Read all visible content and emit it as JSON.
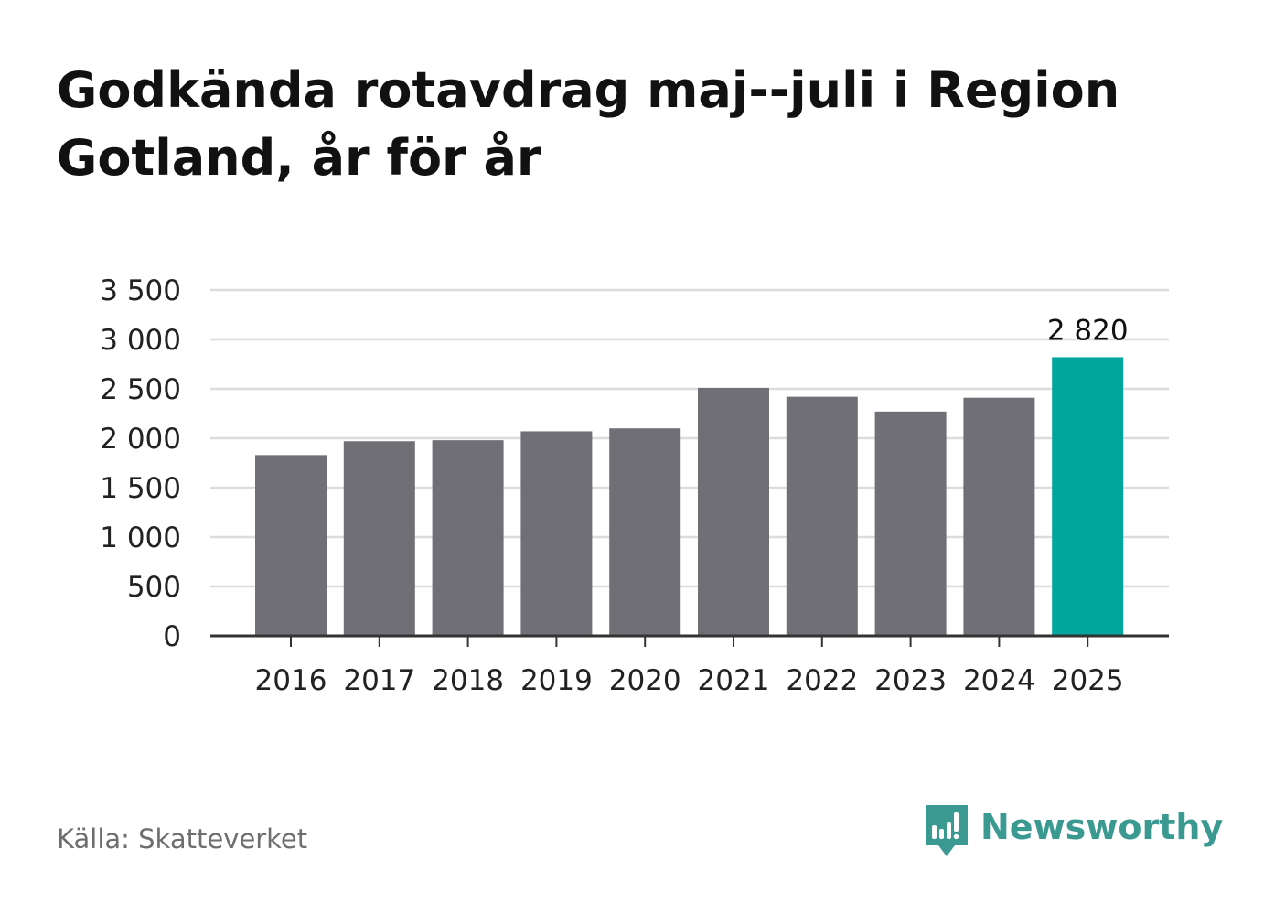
{
  "title": "Godkända rotavdrag maj--juli i Region Gotland, år för år",
  "source": "Källa: Skatteverket",
  "brand": {
    "name": "Newsworthy",
    "color": "#3a9a92",
    "icon": "newsworthy-logo-icon"
  },
  "colors": {
    "bar": "#706f75",
    "highlight": "#00a59b",
    "grid": "#dcdcdc",
    "axis": "#333333",
    "text": "#222222"
  },
  "chart_data": {
    "type": "bar",
    "title": "Godkända rotavdrag maj--juli i Region Gotland, år för år",
    "xlabel": "",
    "ylabel": "",
    "categories": [
      "2016",
      "2017",
      "2018",
      "2019",
      "2020",
      "2021",
      "2022",
      "2023",
      "2024",
      "2025"
    ],
    "values": [
      1830,
      1970,
      1980,
      2070,
      2100,
      2510,
      2420,
      2270,
      2410,
      2820
    ],
    "highlight_index": 9,
    "data_labels": [
      {
        "index": 9,
        "text": "2 820"
      }
    ],
    "ylim": [
      0,
      3500
    ],
    "yticks": [
      0,
      500,
      1000,
      1500,
      2000,
      2500,
      3000,
      3500
    ],
    "ytick_labels": [
      "0",
      "500",
      "1 000",
      "1 500",
      "2 000",
      "2 500",
      "3 000",
      "3 500"
    ],
    "grid": true,
    "legend": "none"
  }
}
